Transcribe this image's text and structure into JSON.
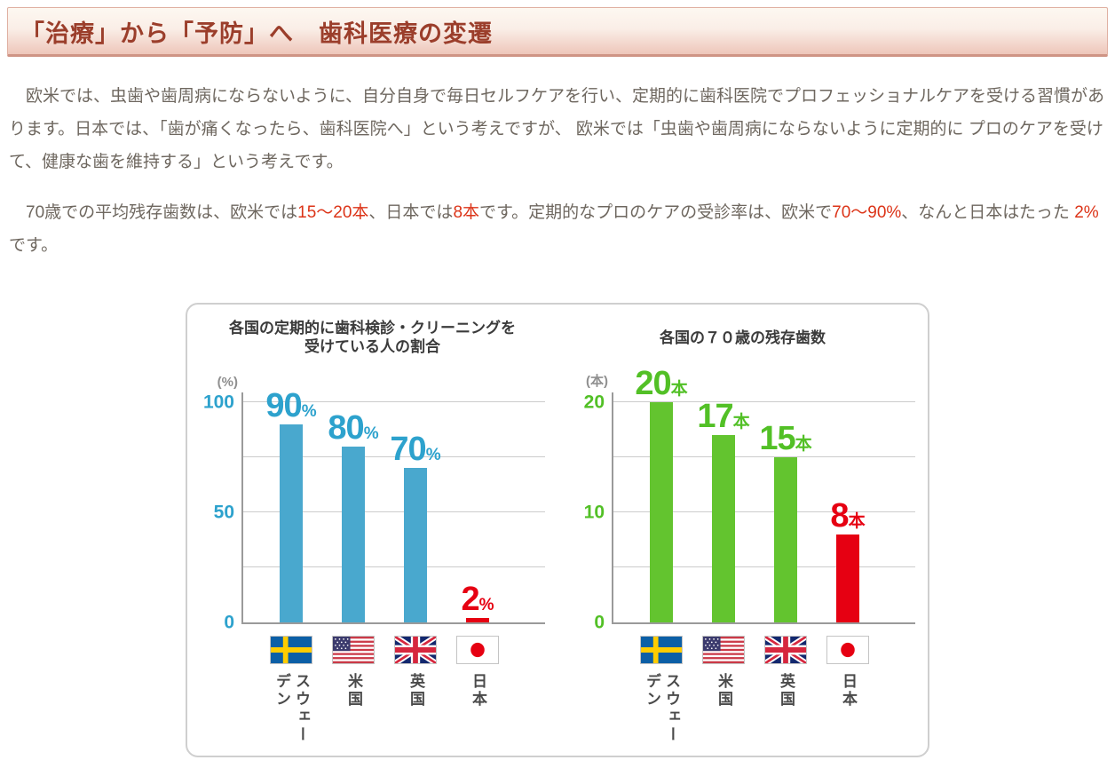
{
  "header": {
    "title": "「治療」から「予防」へ　歯科医療の変遷"
  },
  "intro": {
    "p1": "　欧米では、虫歯や歯周病にならないように、自分自身で毎日セルフケアを行い、定期的に歯科医院でプロフェッショナルケアを受ける習慣があります。日本では、「歯が痛くなったら、歯科医院へ」という考えですが、 欧米では「虫歯や歯周病にならないように定期的に プロのケアを受けて、健康な歯を維持する」という考えです。",
    "p2_segments": [
      {
        "text": "　70歳での平均残存歯数は、欧米では",
        "red": false
      },
      {
        "text": "15～20本",
        "red": true
      },
      {
        "text": "、日本では",
        "red": false
      },
      {
        "text": "8本",
        "red": true
      },
      {
        "text": "です。定期的なプロのケアの受診率は、欧米で",
        "red": false
      },
      {
        "text": "70～90%",
        "red": true
      },
      {
        "text": "、なんと日本はたった ",
        "red": false
      },
      {
        "text": "2%",
        "red": true
      },
      {
        "text": " です。",
        "red": false
      }
    ]
  },
  "chart_data": [
    {
      "type": "bar",
      "title_lines": [
        "各国の定期的に歯科検診・クリーニングを",
        "受けている人の割合"
      ],
      "unit": "(%)",
      "ylabel": "(%)",
      "ylim": [
        0,
        100
      ],
      "gridline_step": 25,
      "ticks": [
        100,
        50,
        0
      ],
      "grid": true,
      "categories": [
        "スウェーデン",
        "米国",
        "英国",
        "日本"
      ],
      "flags": [
        "sweden",
        "usa",
        "uk",
        "japan"
      ],
      "values": [
        90,
        80,
        70,
        2
      ],
      "value_suffix": "%",
      "bar_color": "#49a8ce",
      "label_color": "#2da2cd",
      "highlight_index": 3,
      "highlight_color": "#e60012"
    },
    {
      "type": "bar",
      "title_lines": [
        "各国の７０歳の残存歯数"
      ],
      "unit": "(本)",
      "ylabel": "(本)",
      "ylim": [
        0,
        20
      ],
      "gridline_step": 5,
      "ticks": [
        20,
        10,
        0
      ],
      "grid": true,
      "categories": [
        "スウェーデン",
        "米国",
        "英国",
        "日本"
      ],
      "flags": [
        "sweden",
        "usa",
        "uk",
        "japan"
      ],
      "values": [
        20,
        17,
        15,
        8
      ],
      "value_suffix": "本",
      "bar_color": "#63c42f",
      "label_color": "#52c026",
      "highlight_index": 3,
      "highlight_color": "#e60012"
    }
  ],
  "colors": {
    "banner_text": "#9b3e2b",
    "body_text": "#6e675f",
    "red_text": "#dc3418",
    "blue_bar": "#49a8ce",
    "green_bar": "#63c42f",
    "red_bar": "#e60012"
  }
}
